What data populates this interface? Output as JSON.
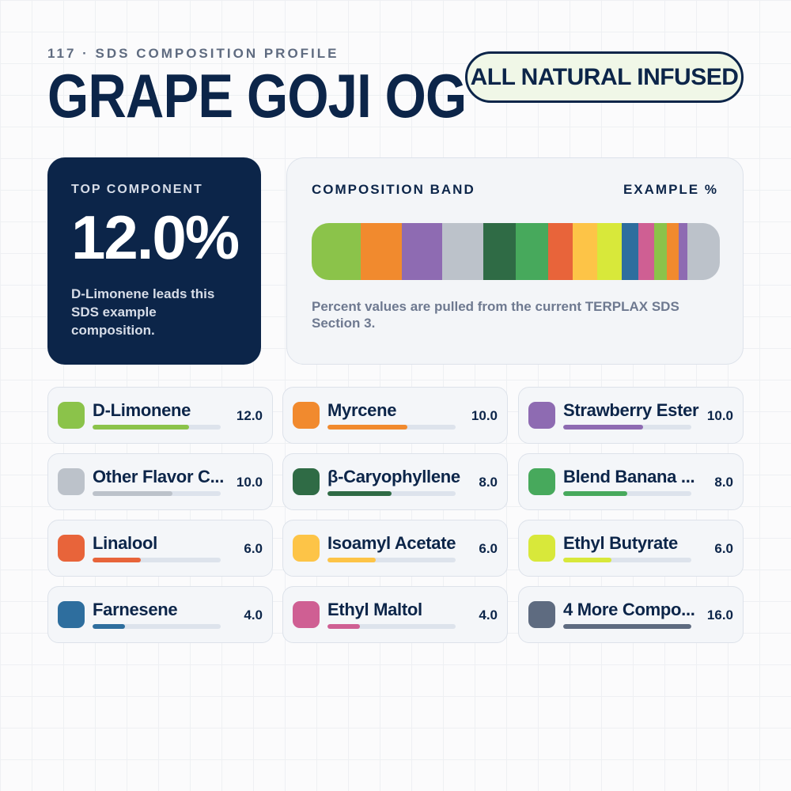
{
  "header": {
    "kicker": "117 · SDS COMPOSITION PROFILE",
    "title": "GRAPE GOJI OG",
    "badge": "ALL NATURAL INFUSED"
  },
  "top_card": {
    "label": "TOP COMPONENT",
    "value": "12.0%",
    "description": "D-Limonene leads this SDS example composition."
  },
  "band_card": {
    "title": "COMPOSITION BAND",
    "unit_label": "EXAMPLE %",
    "note": "Percent values are pulled from the current TERPLAX SDS Section 3."
  },
  "chart_data": {
    "type": "bar",
    "unit": "%",
    "max": 16.0,
    "categories": [
      "D-Limonene",
      "Myrcene",
      "Strawberry Ester",
      "Other Flavor C...",
      "β-Caryophyllene",
      "Blend Banana ...",
      "Linalool",
      "Isoamyl Acetate",
      "Ethyl Butyrate",
      "Farnesene",
      "Ethyl Maltol",
      "4 More Compo..."
    ],
    "values": [
      12.0,
      10.0,
      10.0,
      10.0,
      8.0,
      8.0,
      6.0,
      6.0,
      6.0,
      4.0,
      4.0,
      16.0
    ],
    "value_labels": [
      "12.0",
      "10.0",
      "10.0",
      "10.0",
      "8.0",
      "8.0",
      "6.0",
      "6.0",
      "6.0",
      "4.0",
      "4.0",
      "16.0"
    ],
    "colors": [
      "#8bc34a",
      "#f18a2e",
      "#8e6bb2",
      "#bcc2ca",
      "#2f6b45",
      "#47a95c",
      "#e8643a",
      "#fdc447",
      "#d8e83a",
      "#2e6e9e",
      "#cf5f93",
      "#5e6b80"
    ],
    "band": [
      {
        "value": 12.0,
        "color": "#8bc34a"
      },
      {
        "value": 10.0,
        "color": "#f18a2e"
      },
      {
        "value": 10.0,
        "color": "#8e6bb2"
      },
      {
        "value": 10.0,
        "color": "#bcc2ca"
      },
      {
        "value": 8.0,
        "color": "#2f6b45"
      },
      {
        "value": 8.0,
        "color": "#47a95c"
      },
      {
        "value": 6.0,
        "color": "#e8643a"
      },
      {
        "value": 6.0,
        "color": "#fdc447"
      },
      {
        "value": 6.0,
        "color": "#d8e83a"
      },
      {
        "value": 4.0,
        "color": "#2e6e9e"
      },
      {
        "value": 4.0,
        "color": "#cf5f93"
      },
      {
        "value": 3.0,
        "color": "#8bc34a"
      },
      {
        "value": 3.0,
        "color": "#f18a2e"
      },
      {
        "value": 2.0,
        "color": "#8e6bb2"
      },
      {
        "value": 8.0,
        "color": "#bcc2ca"
      }
    ]
  }
}
